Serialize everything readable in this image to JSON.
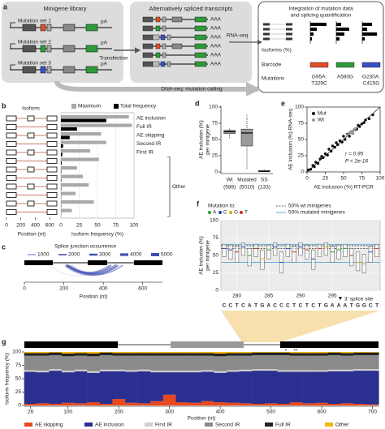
{
  "figure": {
    "panel_a": {
      "label": "a",
      "library_title": "Minigene library",
      "sets": [
        "Mutation set 1",
        "Mutation set 2",
        "Mutation set 3"
      ],
      "pa": "pA",
      "transfection": "Transfection",
      "transcripts_title": "Alternatively spliced transcripts",
      "aaa": "AAA",
      "rnaseq": "RNA-seq",
      "dnaseq": "DNA-seq: mutation calling",
      "integration_title": [
        "Integration of mutation data",
        "and splicing quantification"
      ],
      "isoforms": "Isoforms (%)",
      "barcode": "Barcode",
      "mutations_label": "Mutations",
      "mutations": [
        [
          "G95A:",
          "T329C"
        ],
        [
          "A580G"
        ],
        [
          "G230A:",
          "C415G"
        ]
      ]
    }
  },
  "chart_data": [
    {
      "panel": "b",
      "type": "hbar",
      "x_left_label": "Isoform",
      "categories": [
        "AE inclusion",
        "Full IR",
        "AE skipping",
        "Second IR",
        "First IR",
        null,
        null,
        null,
        null,
        null,
        null,
        null
      ],
      "group_label": "Other",
      "series": [
        {
          "name": "Maximum",
          "color": "#a8a8a8",
          "values": [
            93,
            97,
            55,
            62,
            40,
            52,
            22,
            30,
            38,
            20,
            45,
            15
          ]
        },
        {
          "name": "Total frequency",
          "color": "#000000",
          "values": [
            62,
            22,
            12,
            3,
            2,
            1,
            0.5,
            0.5,
            0.5,
            0.3,
            0.3,
            0.2
          ]
        }
      ],
      "xlim": [
        0,
        100
      ],
      "xticks": [
        0,
        25,
        50,
        75,
        100
      ],
      "xlabel": "Isoform frequency (%)",
      "position_xlabel": "Position (nt)",
      "position_xlim": [
        0,
        700
      ],
      "position_xticks": [
        0,
        200,
        400,
        600
      ]
    },
    {
      "panel": "c",
      "type": "arc",
      "title": "Splice junction occurrence",
      "legend_values": [
        1000,
        2000,
        3000,
        4000,
        5000
      ],
      "color": "#3d4fb0",
      "junctions": {
        "start": [
          210,
          215,
          220,
          230,
          240,
          120
        ],
        "end": [
          470,
          440,
          500,
          480,
          460,
          430
        ],
        "values": [
          5000,
          3500,
          2000,
          1200,
          600,
          300
        ]
      },
      "xlim": [
        0,
        700
      ],
      "xticks": [
        0,
        200,
        400,
        600
      ],
      "xlabel": "Position (nt)"
    },
    {
      "panel": "d",
      "type": "box",
      "categories": [
        "Wt",
        "Mutated",
        "SS"
      ],
      "counts": [
        "(588)",
        "(5010)",
        "(133)"
      ],
      "ylabel": [
        "AE inclusion (%)",
        "per minigene"
      ],
      "ylim": [
        0,
        100
      ],
      "yticks": [
        0,
        25,
        50,
        75,
        100
      ],
      "color": "#9a9a9a",
      "boxes": {
        "min": [
          52,
          5,
          0
        ],
        "q1": [
          59,
          40,
          0.5
        ],
        "median": [
          62,
          60,
          1
        ],
        "q3": [
          64,
          66,
          2
        ],
        "max": [
          68,
          88,
          4
        ]
      }
    },
    {
      "panel": "e",
      "type": "scatter",
      "xlabel": "AE inclusion (%) RT-PCR",
      "ylabel": "AE inclusion (%) RNA-seq",
      "xlim": [
        0,
        100
      ],
      "ylim": [
        0,
        100
      ],
      "xticks": [
        0,
        25,
        50,
        75,
        100
      ],
      "yticks": [
        0,
        25,
        50,
        75,
        100
      ],
      "annotations": [
        "r = 0.95",
        "P < 2e-16"
      ],
      "series": [
        {
          "name": "Mut",
          "color": "#111111",
          "x": [
            2,
            5,
            8,
            10,
            12,
            15,
            18,
            20,
            22,
            25,
            28,
            30,
            33,
            35,
            38,
            40,
            42,
            45,
            48,
            50,
            52,
            55,
            58,
            60,
            62,
            65,
            68,
            70,
            72,
            75,
            78,
            80,
            85,
            90
          ],
          "values": [
            3,
            4,
            10,
            8,
            15,
            13,
            20,
            24,
            22,
            28,
            26,
            35,
            32,
            40,
            38,
            45,
            42,
            48,
            46,
            55,
            50,
            58,
            55,
            62,
            60,
            65,
            66,
            72,
            70,
            74,
            76,
            80,
            82,
            88
          ]
        },
        {
          "name": "Wt",
          "color": "#999999",
          "x": [
            55,
            58,
            60,
            62,
            64,
            66,
            60,
            63
          ],
          "values": [
            57,
            60,
            62,
            63,
            64,
            67,
            61,
            59
          ]
        }
      ]
    },
    {
      "panel": "f",
      "type": "box",
      "legend_title": "Mutation to:",
      "nucleotides": [
        {
          "name": "A",
          "color": "#2ca02c"
        },
        {
          "name": "C",
          "color": "#1f3fbf"
        },
        {
          "name": "G",
          "color": "#e0a800"
        },
        {
          "name": "T",
          "color": "#d62728"
        }
      ],
      "reference_lines": [
        {
          "name": "50% wt minigenes",
          "values": [
            60,
            64
          ],
          "color": "#333333",
          "dashed": true
        },
        {
          "name": "50% mutated minigenes",
          "values": [
            40,
            66
          ],
          "color": "#3a9ad9",
          "dashed": false
        }
      ],
      "ylabel": [
        "AE inclusion (%)",
        "per minigene"
      ],
      "ylim": [
        0,
        100
      ],
      "yticks": [
        0,
        25,
        50,
        75,
        100
      ],
      "x": [
        278,
        279,
        280,
        281,
        282,
        283,
        284,
        285,
        286,
        287,
        288,
        289,
        290,
        291,
        292,
        293,
        294,
        295,
        296,
        297,
        298,
        299,
        300,
        301,
        302
      ],
      "xlim": [
        277.5,
        302.5
      ],
      "xticks": [
        280,
        285,
        290,
        295
      ],
      "sequence": [
        "C",
        "C",
        "T",
        "C",
        "A",
        "T",
        "G",
        "A",
        "C",
        "C",
        "C",
        "T",
        "C",
        "T",
        "C",
        "T",
        "G",
        "A",
        "A",
        "A",
        "T",
        "G",
        "G",
        "C",
        "T"
      ],
      "splice_label": "3' splice site",
      "boxes": {
        "q1": [
          48,
          45,
          40,
          50,
          35,
          48,
          30,
          45,
          50,
          25,
          48,
          40,
          50,
          45,
          30,
          48,
          50,
          40,
          45,
          48,
          35,
          28,
          25,
          40,
          48
        ],
        "median": [
          60,
          58,
          55,
          62,
          50,
          60,
          45,
          58,
          62,
          40,
          60,
          55,
          62,
          58,
          45,
          60,
          62,
          55,
          58,
          60,
          50,
          40,
          38,
          55,
          60
        ],
        "q3": [
          66,
          65,
          63,
          68,
          60,
          66,
          58,
          65,
          68,
          55,
          66,
          63,
          68,
          65,
          58,
          66,
          68,
          63,
          65,
          66,
          60,
          55,
          52,
          63,
          66
        ]
      }
    },
    {
      "panel": "g",
      "type": "stacked_bar",
      "ylabel": "Isoform frequency (%)",
      "xlabel": "Position (nt)",
      "annotations": [
        "*",
        "**"
      ],
      "x": [
        26,
        50,
        75,
        100,
        125,
        150,
        175,
        200,
        225,
        250,
        275,
        300,
        325,
        350,
        375,
        400,
        425,
        450,
        475,
        500,
        525,
        550,
        575,
        600,
        625,
        650,
        675,
        700
      ],
      "xlim": [
        14,
        712
      ],
      "xticks": [
        26,
        100,
        200,
        300,
        400,
        500,
        600,
        700
      ],
      "ylim": [
        0,
        100
      ],
      "yticks": [
        0,
        25,
        50,
        75,
        100
      ],
      "series": [
        {
          "name": "AE skipping",
          "color": "#e8491d",
          "values": [
            3,
            4,
            3,
            5,
            4,
            6,
            3,
            12,
            5,
            4,
            8,
            20,
            6,
            5,
            8,
            6,
            5,
            4,
            3,
            4,
            3,
            6,
            4,
            5,
            3,
            4,
            3,
            2
          ]
        },
        {
          "name": "AE inclusion",
          "color": "#2b2f8f",
          "values": [
            60,
            58,
            62,
            57,
            60,
            55,
            61,
            52,
            58,
            60,
            54,
            42,
            56,
            57,
            55,
            55,
            58,
            60,
            62,
            61,
            60,
            57,
            59,
            58,
            61,
            60,
            62,
            63
          ]
        },
        {
          "name": "First IR",
          "color": "#d0d0d0",
          "values": [
            3,
            3,
            3,
            3,
            3,
            3,
            3,
            3,
            3,
            3,
            3,
            3,
            3,
            3,
            3,
            3,
            3,
            3,
            3,
            3,
            3,
            3,
            3,
            3,
            3,
            3,
            3,
            3
          ]
        },
        {
          "name": "Second IR",
          "color": "#8a8a8a",
          "values": [
            27,
            28,
            26,
            27,
            26,
            28,
            27,
            26,
            27,
            26,
            28,
            28,
            28,
            28,
            27,
            28,
            27,
            26,
            26,
            26,
            28,
            27,
            27,
            27,
            27,
            26,
            26,
            26
          ]
        },
        {
          "name": "Full IR",
          "color": "#222222",
          "values": [
            5,
            5,
            5,
            5,
            5,
            5,
            5,
            5,
            5,
            5,
            5,
            5,
            5,
            5,
            5,
            5,
            5,
            5,
            5,
            5,
            5,
            5,
            5,
            5,
            5,
            5,
            5,
            5
          ]
        },
        {
          "name": "Other",
          "color": "#f5b800",
          "values": [
            2,
            2,
            1,
            3,
            2,
            3,
            1,
            2,
            2,
            2,
            2,
            2,
            2,
            2,
            2,
            3,
            2,
            2,
            1,
            1,
            1,
            2,
            2,
            2,
            1,
            2,
            1,
            1
          ]
        }
      ]
    }
  ]
}
